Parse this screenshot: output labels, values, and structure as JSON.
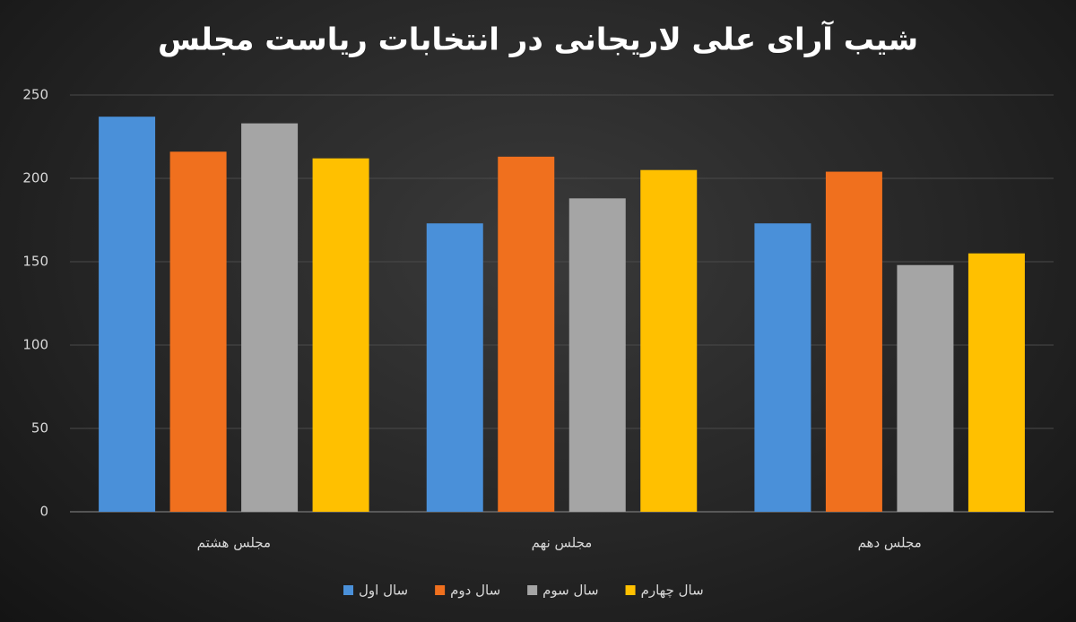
{
  "chart_data": {
    "type": "bar",
    "title": "شیب آرای علی لاریجانی در انتخابات ریاست مجلس",
    "categories": [
      "مجلس هشتم",
      "مجلس نهم",
      "مجلس دهم"
    ],
    "series": [
      {
        "name": "سال اول",
        "color": "#4a90d9",
        "values": [
          237,
          173,
          173
        ]
      },
      {
        "name": "سال دوم",
        "color": "#f0701e",
        "values": [
          216,
          213,
          204
        ]
      },
      {
        "name": "سال سوم",
        "color": "#a5a5a5",
        "values": [
          233,
          188,
          148
        ]
      },
      {
        "name": "سال چهارم",
        "color": "#ffc000",
        "values": [
          212,
          205,
          155
        ]
      }
    ],
    "ylim": [
      0,
      250
    ],
    "yticks": [
      0,
      50,
      100,
      150,
      200,
      250
    ],
    "grid": true,
    "legend": "bottom"
  }
}
